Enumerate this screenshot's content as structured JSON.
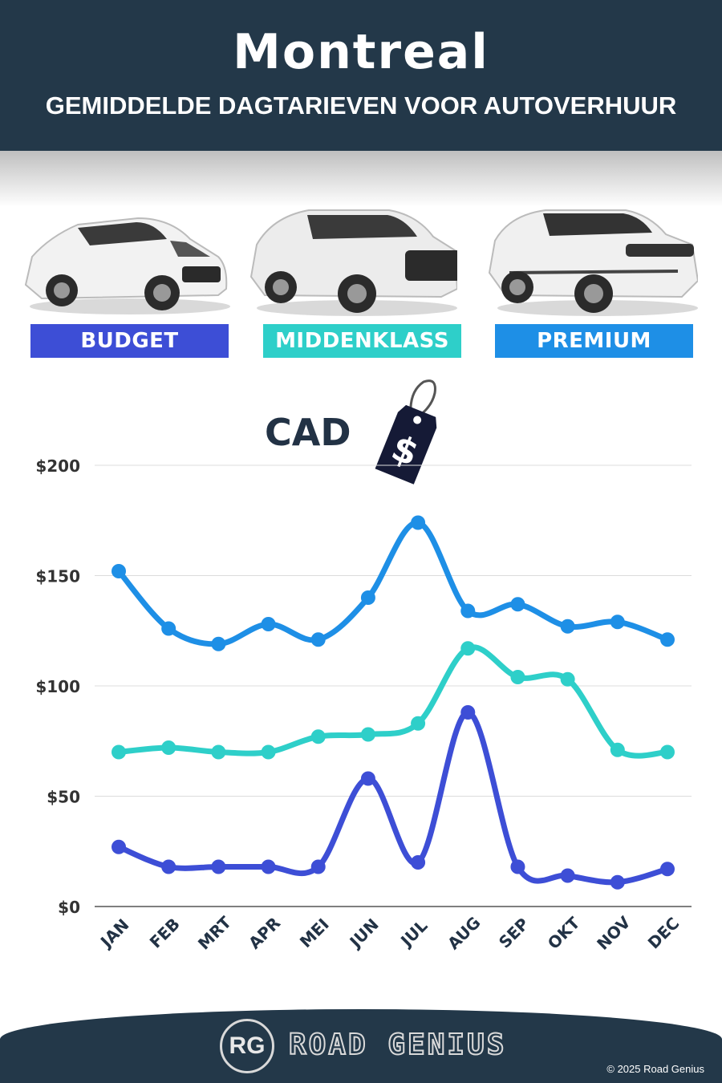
{
  "header": {
    "city": "Montreal",
    "subtitle": "GEMIDDELDE DAGTARIEVEN VOOR AUTOVERHUUR"
  },
  "categories": [
    {
      "label": "BUDGET",
      "color": "#3d4ed6"
    },
    {
      "label": "MIDDENKLASS",
      "color": "#2ecfc9"
    },
    {
      "label": "PREMIUM",
      "color": "#1e8fe6"
    }
  ],
  "currency": {
    "label": "CAD",
    "tag_symbol": "$"
  },
  "chart_data": {
    "type": "line",
    "x": [
      "JAN",
      "FEB",
      "MRT",
      "APR",
      "MEI",
      "JUN",
      "JUL",
      "AUG",
      "SEP",
      "OKT",
      "NOV",
      "DEC"
    ],
    "series": [
      {
        "name": "PREMIUM",
        "color": "#1e8fe6",
        "values": [
          152,
          126,
          119,
          128,
          121,
          140,
          174,
          134,
          137,
          127,
          129,
          121
        ]
      },
      {
        "name": "MIDDENKLASS",
        "color": "#2ecfc9",
        "values": [
          70,
          72,
          70,
          70,
          77,
          78,
          83,
          117,
          104,
          103,
          71,
          70
        ]
      },
      {
        "name": "BUDGET",
        "color": "#3d4ed6",
        "values": [
          27,
          18,
          18,
          18,
          18,
          58,
          20,
          88,
          18,
          14,
          11,
          17
        ]
      }
    ],
    "y_ticks": [
      "$0",
      "$50",
      "$100",
      "$150",
      "$200"
    ],
    "ylim": [
      0,
      200
    ],
    "grid": true
  },
  "footer": {
    "logo_initials": "RG",
    "brand": "ROAD GENIUS",
    "copyright": "© 2025 Road Genius"
  }
}
